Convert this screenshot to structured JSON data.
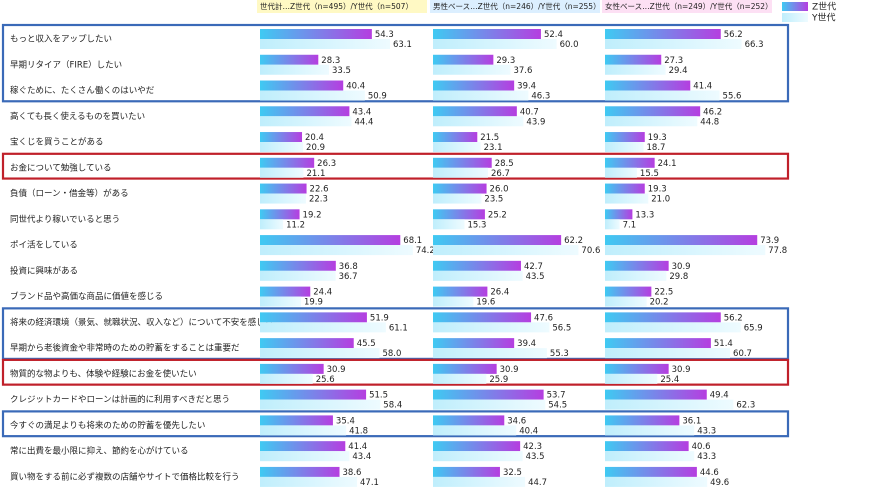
{
  "chart_data": {
    "type": "bar",
    "categories": [
      "もっと収入をアップしたい",
      "早期リタイア（FIRE）したい",
      "稼ぐために、たくさん働くのはいやだ",
      "高くても長く使えるものを買いたい",
      "宝くじを買うことがある",
      "お金について勉強している",
      "負債（ローン・借金等）がある",
      "同世代より稼いでいると思う",
      "ポイ活をしている",
      "投資に興味がある",
      "ブランド品や高価な商品に価値を感じる",
      "将来の経済環境（景気、就職状況、収入など）について不安を感じる",
      "早期から老後資金や非常時のための貯蓄をすることは重要だ",
      "物質的な物よりも、体験や経験にお金を使いたい",
      "クレジットカードやローンは計画的に利用すべきだと思う",
      "今すぐの満足よりも将来のための貯蓄を優先したい",
      "常に出費を最小限に抑え、節約を心がけている",
      "買い物をする前に必ず複数の店舗やサイトで価格比較を行う"
    ],
    "legend": [
      {
        "name": "Z世代",
        "color": "#b040e0"
      },
      {
        "name": "Y世代",
        "color": "#c8f0fc"
      }
    ],
    "panels": [
      {
        "title": "世代計…Z世代（n=495）/Y世代（n=507）",
        "series": [
          {
            "values": [
              54.3,
              28.3,
              40.4,
              43.4,
              20.4,
              26.3,
              22.6,
              19.2,
              68.1,
              36.8,
              24.4,
              51.9,
              45.5,
              30.9,
              51.5,
              35.4,
              41.4,
              38.6
            ],
            "value_labels": [
              "54.3",
              "28.3",
              "40.4",
              "43.4",
              "20.4",
              "26.3",
              "22.6",
              "19.2",
              "68.1",
              "36.8",
              "24.4",
              "51.9",
              "45.5",
              "30.9",
              "51.5",
              "35.4",
              "41.4",
              "38.6"
            ]
          },
          {
            "values": [
              63.1,
              33.5,
              50.9,
              44.4,
              20.9,
              21.1,
              22.3,
              11.2,
              74.2,
              36.7,
              19.9,
              61.1,
              58.0,
              25.6,
              58.4,
              41.8,
              43.4,
              47.1
            ],
            "value_labels": [
              "63.1",
              "33.5",
              "50.9",
              "44.4",
              "20.9",
              "21.1",
              "22.3",
              "11.2",
              "74.2",
              "36.7",
              "19.9",
              "61.1",
              "58.0",
              "25.6",
              "58.4",
              "41.8",
              "43.4",
              "47.1"
            ]
          }
        ]
      },
      {
        "title": "男性ベース…Z世代（n=246）/Y世代（n=255）",
        "series": [
          {
            "values": [
              52.4,
              29.3,
              39.4,
              40.7,
              21.5,
              28.5,
              26.0,
              25.2,
              62.2,
              42.7,
              26.4,
              47.6,
              39.4,
              30.9,
              53.7,
              34.6,
              42.3,
              32.5
            ],
            "value_labels": [
              "52.4",
              "29.3",
              "39.4",
              "40.7",
              "21.5",
              "28.5",
              "26.0",
              "25.2",
              "62.2",
              "42.7",
              "26.4",
              "47.6",
              "39.4",
              "30.9",
              "53.7",
              "34.6",
              "42.3",
              "32.5"
            ]
          },
          {
            "values": [
              60.0,
              37.6,
              46.3,
              43.9,
              23.1,
              26.7,
              23.5,
              15.3,
              70.6,
              43.5,
              19.6,
              56.5,
              55.3,
              25.9,
              54.5,
              40.4,
              43.5,
              44.7
            ],
            "value_labels": [
              "60.0",
              "37.6",
              "46.3",
              "43.9",
              "23.1",
              "26.7",
              "23.5",
              "15.3",
              "70.6",
              "43.5",
              "19.6",
              "56.5",
              "55.3",
              "25.9",
              "54.5",
              "40.4",
              "43.5",
              "44.7"
            ]
          }
        ]
      },
      {
        "title": "女性ベース…Z世代（n=249）/Y世代（n=252）",
        "series": [
          {
            "values": [
              56.2,
              27.3,
              41.4,
              46.2,
              19.3,
              24.1,
              19.3,
              13.3,
              73.9,
              30.9,
              22.5,
              56.2,
              51.4,
              30.9,
              49.4,
              36.1,
              40.6,
              44.6
            ],
            "value_labels": [
              "56.2",
              "27.3",
              "41.4",
              "46.2",
              "19.3",
              "24.1",
              "19.3",
              "13.3",
              "73.9",
              "30.9",
              "22.5",
              "56.2",
              "51.4",
              "30.9",
              "49.4",
              "36.1",
              "40.6",
              "44.6"
            ]
          },
          {
            "values": [
              66.3,
              29.4,
              55.6,
              44.8,
              18.7,
              15.5,
              21.0,
              7.1,
              77.8,
              29.8,
              20.2,
              65.9,
              60.7,
              25.4,
              62.3,
              43.3,
              43.3,
              49.6
            ],
            "value_labels": [
              "66.3",
              "29.4",
              "55.6",
              "44.8",
              "18.7",
              "15.5",
              "21.0",
              "7.1",
              "77.8",
              "29.8",
              "20.2",
              "65.9",
              "60.7",
              "25.4",
              "62.3",
              "43.3",
              "43.3",
              "49.6"
            ]
          }
        ]
      }
    ]
  }
}
